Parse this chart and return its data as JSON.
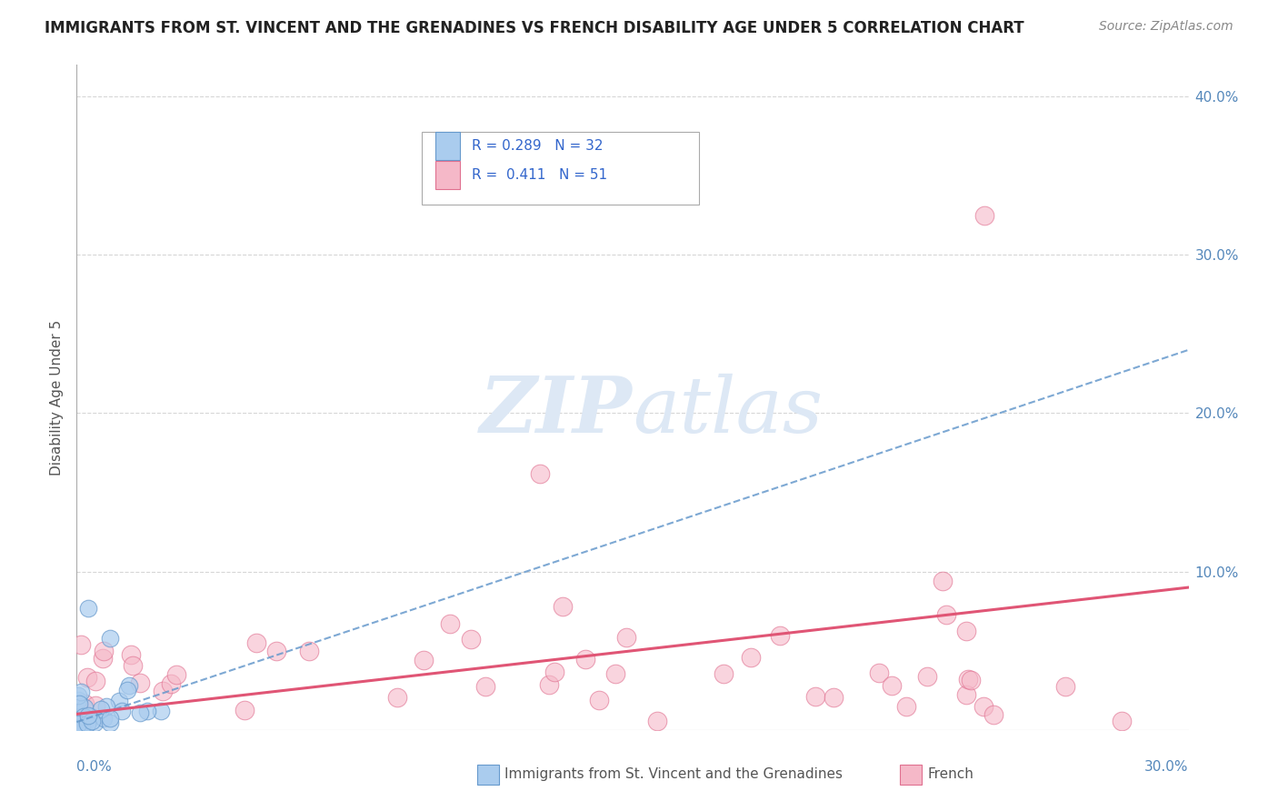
{
  "title": "IMMIGRANTS FROM ST. VINCENT AND THE GRENADINES VS FRENCH DISABILITY AGE UNDER 5 CORRELATION CHART",
  "source": "Source: ZipAtlas.com",
  "ylabel": "Disability Age Under 5",
  "xmin": 0.0,
  "xmax": 0.3,
  "ymin": 0.0,
  "ymax": 0.42,
  "yticks": [
    0.1,
    0.2,
    0.3,
    0.4
  ],
  "ytick_labels": [
    "10.0%",
    "20.0%",
    "30.0%",
    "40.0%"
  ],
  "series1_color": "#aaccee",
  "series1_edge": "#6699cc",
  "series2_color": "#f5b8c8",
  "series2_edge": "#e07090",
  "trendline1_color": "#6699cc",
  "trendline2_color": "#e05575",
  "background_color": "#ffffff",
  "grid_color": "#cccccc",
  "watermark_color": "#dde8f5",
  "s1_R": 0.289,
  "s1_N": 32,
  "s2_R": 0.411,
  "s2_N": 51,
  "legend_text_color": "#3366cc",
  "legend_N_color": "#cc0000",
  "label1": "Immigrants from St. Vincent and the Grenadines",
  "label2": "French"
}
